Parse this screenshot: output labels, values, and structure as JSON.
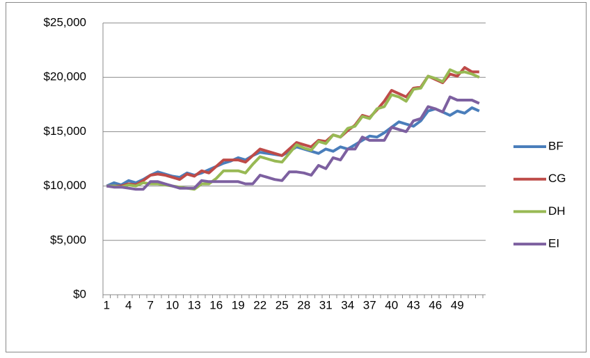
{
  "chart_data": {
    "type": "line",
    "categories": [
      "1",
      null,
      null,
      "4",
      null,
      null,
      "7",
      null,
      null,
      "10",
      null,
      null,
      "13",
      null,
      null,
      "16",
      null,
      null,
      "19",
      null,
      null,
      "22",
      null,
      null,
      "25",
      null,
      null,
      "28",
      null,
      null,
      "31",
      null,
      null,
      "34",
      null,
      null,
      "37",
      null,
      null,
      "40",
      null,
      null,
      "43",
      null,
      null,
      "46",
      null,
      null,
      "49",
      null,
      null,
      null
    ],
    "series": [
      {
        "name": "BF",
        "color": "#4a7ebb",
        "values": [
          10000,
          10300,
          10100,
          10500,
          10300,
          10600,
          11000,
          11300,
          11100,
          10900,
          10800,
          11200,
          11000,
          11200,
          11500,
          11800,
          12100,
          12300,
          12600,
          12400,
          12800,
          13100,
          13000,
          12900,
          12800,
          13200,
          13600,
          13400,
          13200,
          13000,
          13400,
          13200,
          13600,
          13400,
          13800,
          14200,
          14600,
          14500,
          14900,
          15400,
          15900,
          15700,
          15500,
          16000,
          16900,
          17100,
          16800,
          16500,
          16900,
          16700,
          17200,
          16900
        ]
      },
      {
        "name": "CG",
        "color": "#be4b48",
        "values": [
          10000,
          10000,
          10000,
          10200,
          10100,
          10500,
          11000,
          11100,
          11000,
          10800,
          10600,
          11100,
          10900,
          11400,
          11200,
          11800,
          12400,
          12400,
          12400,
          12200,
          12800,
          13400,
          13200,
          13000,
          12800,
          13400,
          14000,
          13800,
          13600,
          14200,
          14100,
          14700,
          14500,
          15100,
          15600,
          16500,
          16300,
          17000,
          17800,
          18800,
          18500,
          18200,
          19000,
          19100,
          20100,
          19800,
          19500,
          20300,
          20100,
          20900,
          20500,
          20500
        ]
      },
      {
        "name": "DH",
        "color": "#98b954",
        "values": [
          10000,
          10000,
          9900,
          10100,
          10000,
          10300,
          10200,
          10200,
          10100,
          10000,
          9900,
          9800,
          9700,
          10200,
          10200,
          10700,
          11400,
          11400,
          11400,
          11200,
          12000,
          12700,
          12500,
          12300,
          12200,
          13000,
          13800,
          13500,
          13300,
          14100,
          13900,
          14700,
          14500,
          15300,
          15500,
          16400,
          16200,
          17100,
          17300,
          18400,
          18200,
          17800,
          18900,
          19000,
          20100,
          19900,
          19600,
          20700,
          20400,
          20500,
          20300,
          20000
        ]
      },
      {
        "name": "EI",
        "color": "#7d60a0",
        "values": [
          10000,
          9900,
          9900,
          9800,
          9700,
          9700,
          10400,
          10400,
          10200,
          10000,
          9800,
          9800,
          9800,
          10500,
          10400,
          10400,
          10400,
          10400,
          10400,
          10200,
          10200,
          11000,
          10800,
          10600,
          10500,
          11300,
          11300,
          11200,
          11000,
          11900,
          11600,
          12600,
          12400,
          13400,
          13400,
          14500,
          14200,
          14200,
          14200,
          15400,
          15200,
          15000,
          16000,
          16200,
          17300,
          17100,
          16800,
          18200,
          17900,
          17900,
          17900,
          17600
        ]
      }
    ],
    "ylim": [
      0,
      25000
    ],
    "yticks": [
      {
        "value": 0,
        "label": "$0"
      },
      {
        "value": 5000,
        "label": "$5,000"
      },
      {
        "value": 10000,
        "label": "$10,000"
      },
      {
        "value": 15000,
        "label": "$15,000"
      },
      {
        "value": 20000,
        "label": "$20,000"
      },
      {
        "value": 25000,
        "label": "$25,000"
      }
    ],
    "grid": true,
    "legend": "right"
  }
}
